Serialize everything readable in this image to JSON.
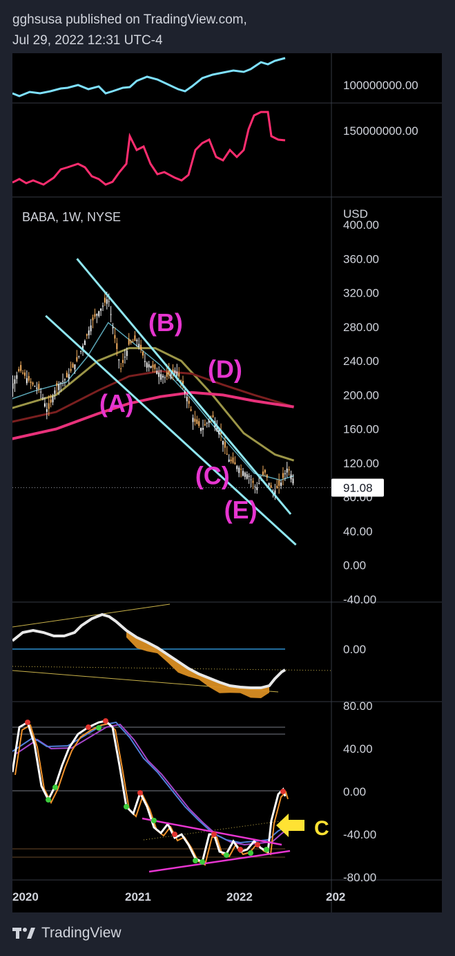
{
  "header": {
    "line1": "gghsusa published on TradingView.com,",
    "line2": "Jul 29, 2022 12:31 UTC-4"
  },
  "footer": {
    "brand": "TradingView",
    "logo_icon": "tradingview-logo-icon"
  },
  "chart_data": [
    {
      "type": "line",
      "panel": "top-indicator-1",
      "color": "#7ee0ff",
      "tick_labels": [
        "100000000.00"
      ]
    },
    {
      "type": "line",
      "panel": "top-indicator-2",
      "color": "#ff2d6f",
      "tick_labels": [
        "150000000.00"
      ]
    },
    {
      "type": "candlestick",
      "panel": "main",
      "title": "BABA, 1W, NYSE",
      "currency": "USD",
      "ylim": [
        -40,
        400
      ],
      "y_ticks": [
        "400.00",
        "360.00",
        "320.00",
        "280.00",
        "240.00",
        "200.00",
        "160.00",
        "120.00",
        "80.00",
        "40.00",
        "0.00",
        "-40.00"
      ],
      "last_price": "91.08",
      "price_series": [
        {
          "x": 2019.75,
          "y": 185
        },
        {
          "x": 2019.85,
          "y": 205
        },
        {
          "x": 2019.95,
          "y": 230
        },
        {
          "x": 2020.05,
          "y": 215
        },
        {
          "x": 2020.15,
          "y": 205
        },
        {
          "x": 2020.22,
          "y": 180
        },
        {
          "x": 2020.3,
          "y": 210
        },
        {
          "x": 2020.4,
          "y": 220
        },
        {
          "x": 2020.5,
          "y": 240
        },
        {
          "x": 2020.58,
          "y": 265
        },
        {
          "x": 2020.66,
          "y": 290
        },
        {
          "x": 2020.75,
          "y": 305
        },
        {
          "x": 2020.8,
          "y": 315
        },
        {
          "x": 2020.85,
          "y": 275
        },
        {
          "x": 2020.92,
          "y": 230
        },
        {
          "x": 2021.0,
          "y": 260
        },
        {
          "x": 2021.08,
          "y": 265
        },
        {
          "x": 2021.15,
          "y": 240
        },
        {
          "x": 2021.25,
          "y": 230
        },
        {
          "x": 2021.35,
          "y": 220
        },
        {
          "x": 2021.45,
          "y": 230
        },
        {
          "x": 2021.55,
          "y": 200
        },
        {
          "x": 2021.62,
          "y": 170
        },
        {
          "x": 2021.7,
          "y": 160
        },
        {
          "x": 2021.8,
          "y": 175
        },
        {
          "x": 2021.88,
          "y": 155
        },
        {
          "x": 2021.95,
          "y": 125
        },
        {
          "x": 2022.05,
          "y": 115
        },
        {
          "x": 2022.15,
          "y": 105
        },
        {
          "x": 2022.22,
          "y": 90
        },
        {
          "x": 2022.3,
          "y": 110
        },
        {
          "x": 2022.38,
          "y": 85
        },
        {
          "x": 2022.45,
          "y": 95
        },
        {
          "x": 2022.52,
          "y": 115
        },
        {
          "x": 2022.58,
          "y": 100
        }
      ],
      "series": [
        {
          "name": "",
          "color": "#5ba7b8",
          "values": [
            {
              "x": 2019.75,
              "y": 190
            },
            {
              "x": 2020.1,
              "y": 205
            },
            {
              "x": 2020.4,
              "y": 215
            },
            {
              "x": 2020.6,
              "y": 245
            },
            {
              "x": 2020.8,
              "y": 285
            },
            {
              "x": 2021.0,
              "y": 265
            },
            {
              "x": 2021.3,
              "y": 235
            },
            {
              "x": 2021.6,
              "y": 195
            },
            {
              "x": 2021.9,
              "y": 150
            },
            {
              "x": 2022.2,
              "y": 108
            },
            {
              "x": 2022.45,
              "y": 100
            },
            {
              "x": 2022.58,
              "y": 105
            }
          ]
        },
        {
          "name": "",
          "color": "#9b9547",
          "values": [
            {
              "x": 2019.75,
              "y": 180
            },
            {
              "x": 2020.3,
              "y": 200
            },
            {
              "x": 2020.7,
              "y": 240
            },
            {
              "x": 2021.0,
              "y": 255
            },
            {
              "x": 2021.25,
              "y": 255
            },
            {
              "x": 2021.5,
              "y": 240
            },
            {
              "x": 2021.8,
              "y": 200
            },
            {
              "x": 2022.1,
              "y": 155
            },
            {
              "x": 2022.4,
              "y": 130
            },
            {
              "x": 2022.58,
              "y": 123
            }
          ]
        },
        {
          "name": "",
          "color": "#7a1f1f",
          "values": [
            {
              "x": 2019.75,
              "y": 165
            },
            {
              "x": 2020.3,
              "y": 180
            },
            {
              "x": 2020.7,
              "y": 205
            },
            {
              "x": 2021.0,
              "y": 222
            },
            {
              "x": 2021.3,
              "y": 228
            },
            {
              "x": 2021.6,
              "y": 225
            },
            {
              "x": 2021.9,
              "y": 212
            },
            {
              "x": 2022.2,
              "y": 200
            },
            {
              "x": 2022.58,
              "y": 186
            }
          ]
        },
        {
          "name": "",
          "color": "#e8317a",
          "values": [
            {
              "x": 2019.75,
              "y": 145
            },
            {
              "x": 2020.3,
              "y": 160
            },
            {
              "x": 2020.7,
              "y": 178
            },
            {
              "x": 2021.0,
              "y": 190
            },
            {
              "x": 2021.3,
              "y": 198
            },
            {
              "x": 2021.6,
              "y": 203
            },
            {
              "x": 2021.9,
              "y": 200
            },
            {
              "x": 2022.2,
              "y": 193
            },
            {
              "x": 2022.58,
              "y": 186
            }
          ]
        }
      ],
      "trendlines": [
        {
          "color": "#8fe6f0",
          "from": {
            "x": 2020.5,
            "y": 360
          },
          "to": {
            "x": 2022.55,
            "y": 60
          }
        },
        {
          "color": "#8fe6f0",
          "from": {
            "x": 2020.2,
            "y": 293
          },
          "to": {
            "x": 2022.6,
            "y": 24
          }
        }
      ],
      "annotations": [
        {
          "text": "(A)",
          "x": 2020.88,
          "y": 180,
          "color": "#e735d0"
        },
        {
          "text": "(B)",
          "x": 2021.35,
          "y": 275,
          "color": "#e735d0"
        },
        {
          "text": "(C)",
          "x": 2021.8,
          "y": 95,
          "color": "#e735d0"
        },
        {
          "text": "(D)",
          "x": 2021.92,
          "y": 220,
          "color": "#e735d0"
        },
        {
          "text": "(E)",
          "x": 2022.07,
          "y": 55,
          "color": "#e735d0"
        }
      ]
    },
    {
      "type": "area",
      "panel": "oscillator-1",
      "y_ticks": [
        "0.00"
      ],
      "colors": {
        "up": "#d9d9d9",
        "down": "#d98e23",
        "zero_line": "#2e8fd0",
        "trend": "#c9b24a"
      }
    },
    {
      "type": "line",
      "panel": "stochastic",
      "ylim": [
        -80,
        80
      ],
      "y_ticks": [
        "80.00",
        "40.00",
        "0.00",
        "-40.00",
        "-80.00"
      ],
      "x_ticks": [
        "2020",
        "2021",
        "2022",
        "202"
      ],
      "series": [
        {
          "name": "",
          "color": "#ffffff"
        },
        {
          "name": "",
          "color": "#f0922b"
        },
        {
          "name": "",
          "color": "#4f7fd9"
        },
        {
          "name": "",
          "color": "#a546c9"
        }
      ],
      "trendlines_color": "#e735d0",
      "arrow_color": "#ffe233",
      "arrow_label": "C"
    }
  ]
}
